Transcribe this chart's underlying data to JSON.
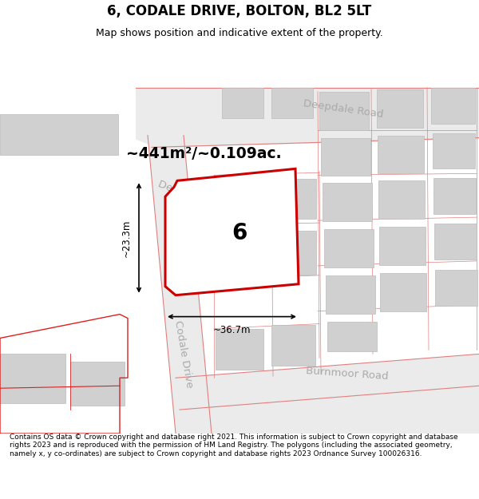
{
  "title": "6, CODALE DRIVE, BOLTON, BL2 5LT",
  "subtitle": "Map shows position and indicative extent of the property.",
  "footer": "Contains OS data © Crown copyright and database right 2021. This information is subject to Crown copyright and database rights 2023 and is reproduced with the permission of HM Land Registry. The polygons (including the associated geometry, namely x, y co-ordinates) are subject to Crown copyright and database rights 2023 Ordnance Survey 100026316.",
  "area_label": "~441m²/~0.109ac.",
  "plot_number": "6",
  "width_label": "~36.7m",
  "height_label": "~23.3m",
  "map_bg": "#f0f0f0",
  "road_fill": "#e8e8e8",
  "road_line": "#e08080",
  "building_fill": "#d0d0d0",
  "building_stroke": "#bbbbbb",
  "plot_fill": "#ffffff",
  "plot_stroke": "#cc0000",
  "road_label_color": "#aaaaaa",
  "title_fontsize": 12,
  "subtitle_fontsize": 9,
  "footer_fontsize": 6.5
}
